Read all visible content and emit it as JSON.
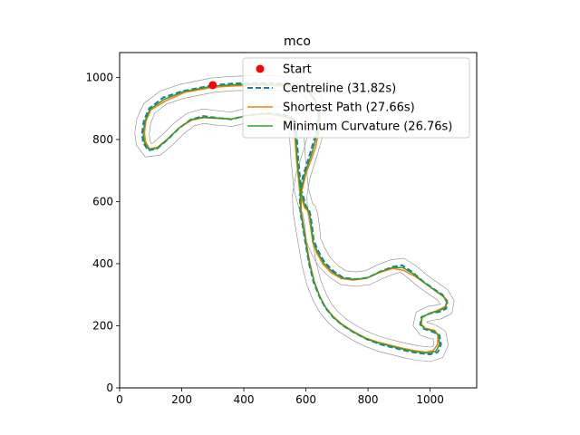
{
  "chart_data": {
    "type": "line",
    "title": "mco",
    "xlabel": "",
    "ylabel": "",
    "xlim": [
      0,
      1150
    ],
    "ylim": [
      0,
      1080
    ],
    "xticks": [
      0,
      200,
      400,
      600,
      800,
      1000
    ],
    "yticks": [
      0,
      200,
      400,
      600,
      800,
      1000
    ],
    "grid": false,
    "legend_position": "top-right",
    "start": {
      "label": "Start",
      "x": 300,
      "y": 975,
      "color": "#ff0000"
    },
    "series": [
      {
        "name": "Centreline (31.82s)",
        "color": "#1f77b4",
        "style": "dashed",
        "x": [
          300,
          200,
          140,
          95,
          78,
          72,
          76,
          92,
          120,
          155,
          190,
          230,
          270,
          310,
          360,
          420,
          480,
          525,
          550,
          565,
          570,
          575,
          585,
          600,
          610,
          615,
          620,
          625,
          640,
          660,
          690,
          720,
          760,
          800,
          840,
          880,
          910,
          940,
          975,
          1010,
          1040,
          1055,
          1052,
          1030,
          1000,
          972,
          968,
          980,
          1010,
          1030,
          1035,
          1025,
          1000,
          960,
          920,
          880,
          840,
          800,
          760,
          720,
          690,
          665,
          645,
          625,
          610,
          598,
          588,
          582,
          580,
          590,
          615,
          635,
          640,
          630,
          610,
          580,
          540,
          480,
          420,
          360,
          300
        ],
        "y": [
          975,
          955,
          935,
          900,
          860,
          820,
          790,
          765,
          770,
          800,
          835,
          865,
          875,
          870,
          865,
          880,
          885,
          880,
          875,
          860,
          820,
          740,
          640,
          585,
          575,
          555,
          520,
          475,
          440,
          405,
          375,
          355,
          350,
          355,
          375,
          390,
          395,
          375,
          345,
          320,
          300,
          275,
          255,
          245,
          240,
          228,
          205,
          190,
          180,
          170,
          140,
          115,
          108,
          112,
          120,
          130,
          140,
          155,
          175,
          200,
          225,
          255,
          290,
          340,
          400,
          470,
          530,
          565,
          620,
          680,
          760,
          830,
          880,
          925,
          960,
          975,
          980,
          982,
          982,
          980,
          975
        ]
      },
      {
        "name": "Shortest Path (27.66s)",
        "color": "#ff7f0e",
        "style": "solid",
        "x": [
          300,
          210,
          150,
          100,
          85,
          80,
          84,
          96,
          122,
          158,
          195,
          232,
          270,
          310,
          360,
          420,
          478,
          520,
          545,
          558,
          564,
          570,
          580,
          596,
          606,
          612,
          616,
          622,
          636,
          655,
          682,
          714,
          752,
          795,
          838,
          880,
          915,
          950,
          985,
          1020,
          1045,
          1056,
          1048,
          1024,
          996,
          974,
          972,
          985,
          1015,
          1025,
          1024,
          1010,
          985,
          950,
          910,
          870,
          830,
          790,
          752,
          714,
          686,
          662,
          644,
          626,
          612,
          600,
          590,
          585,
          585,
          600,
          630,
          645,
          645,
          630,
          605,
          570,
          530,
          475,
          420,
          360,
          300
        ],
        "y": [
          968,
          952,
          925,
          895,
          860,
          822,
          792,
          770,
          775,
          805,
          840,
          862,
          870,
          868,
          866,
          878,
          882,
          876,
          868,
          850,
          810,
          730,
          632,
          580,
          570,
          550,
          515,
          468,
          432,
          398,
          370,
          352,
          347,
          353,
          372,
          385,
          378,
          360,
          335,
          310,
          292,
          282,
          262,
          250,
          240,
          226,
          204,
          192,
          185,
          170,
          140,
          120,
          115,
          120,
          128,
          138,
          148,
          162,
          182,
          207,
          232,
          262,
          296,
          346,
          406,
          476,
          536,
          570,
          625,
          690,
          770,
          840,
          885,
          925,
          955,
          966,
          972,
          974,
          974,
          972,
          968
        ]
      },
      {
        "name": "Minimum Curvature (26.76s)",
        "color": "#2ca02c",
        "style": "solid",
        "x": [
          300,
          205,
          145,
          98,
          82,
          76,
          80,
          94,
          121,
          156,
          192,
          231,
          270,
          310,
          360,
          420,
          479,
          522,
          547,
          561,
          567,
          572,
          582,
          598,
          608,
          613,
          618,
          623,
          638,
          657,
          686,
          717,
          756,
          797,
          839,
          880,
          912,
          945,
          980,
          1015,
          1042,
          1054,
          1050,
          1027,
          998,
          973,
          970,
          982,
          1012,
          1027,
          1030,
          1018,
          993,
          955,
          915,
          875,
          835,
          795,
          756,
          717,
          688,
          664,
          645,
          626,
          611,
          599,
          589,
          583,
          582,
          595,
          622,
          640,
          642,
          630,
          608,
          575,
          535,
          478,
          420,
          360,
          300
        ],
        "y": [
          972,
          954,
          930,
          898,
          860,
          821,
          791,
          768,
          772,
          802,
          838,
          864,
          872,
          869,
          866,
          879,
          883,
          878,
          872,
          855,
          815,
          735,
          636,
          583,
          573,
          553,
          518,
          472,
          436,
          402,
          373,
          354,
          349,
          354,
          374,
          388,
          387,
          368,
          340,
          315,
          296,
          279,
          259,
          248,
          240,
          227,
          205,
          191,
          183,
          170,
          140,
          118,
          112,
          116,
          124,
          134,
          144,
          158,
          178,
          203,
          228,
          258,
          293,
          343,
          403,
          473,
          533,
          567,
          622,
          685,
          765,
          835,
          882,
          925,
          958,
          970,
          976,
          978,
          978,
          976,
          972
        ]
      }
    ]
  }
}
